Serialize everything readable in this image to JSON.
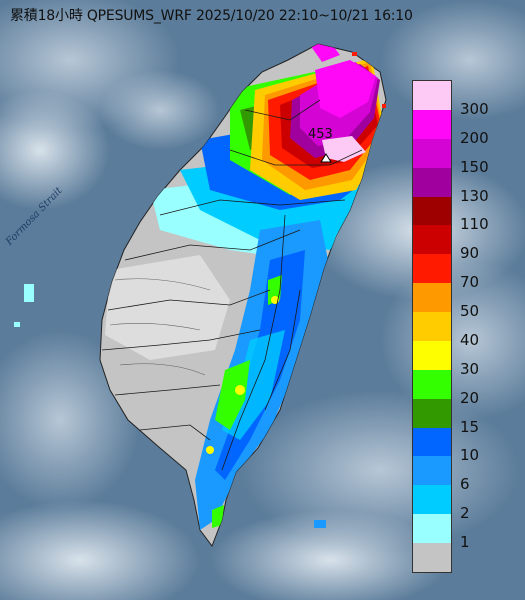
{
  "map": {
    "title": "累積18小時 QPESUMS_WRF 2025/10/20 22:10~10/21 16:10",
    "strait_label": "Formosa Strait",
    "max_value_label": "453"
  },
  "legend": {
    "entries": [
      {
        "label": "300",
        "color": "#fdc9f5"
      },
      {
        "label": "200",
        "color": "#fe08f7"
      },
      {
        "label": "150",
        "color": "#d404d4"
      },
      {
        "label": "130",
        "color": "#a0009e"
      },
      {
        "label": "110",
        "color": "#9e0000"
      },
      {
        "label": "90",
        "color": "#cc0000"
      },
      {
        "label": "70",
        "color": "#ff1a00"
      },
      {
        "label": "50",
        "color": "#ff9900"
      },
      {
        "label": "40",
        "color": "#ffcc00"
      },
      {
        "label": "30",
        "color": "#fffe00"
      },
      {
        "label": "20",
        "color": "#33ff00"
      },
      {
        "label": "15",
        "color": "#339900"
      },
      {
        "label": "10",
        "color": "#0066ff"
      },
      {
        "label": "6",
        "color": "#1a99ff"
      },
      {
        "label": "2",
        "color": "#00ccff"
      },
      {
        "label": "1",
        "color": "#99ffff"
      },
      {
        "label": "",
        "color": "#c4c4c4"
      }
    ]
  }
}
